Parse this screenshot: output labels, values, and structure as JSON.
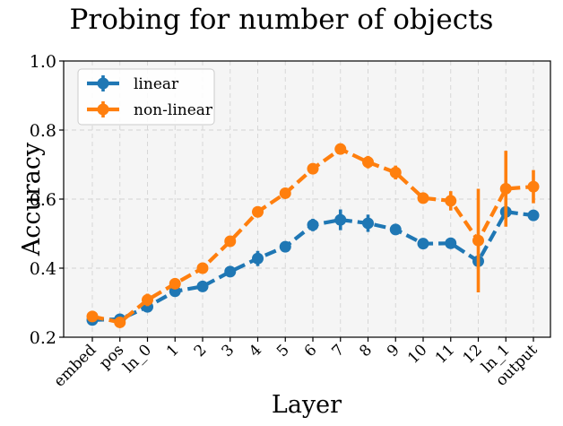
{
  "chart_data": {
    "type": "line",
    "title": "Probing for number of objects",
    "xlabel": "Layer",
    "ylabel": "Accuracy",
    "ylim": [
      0.2,
      1.0
    ],
    "yticks": [
      "0.2",
      "0.4",
      "0.6",
      "0.8",
      "1.0"
    ],
    "grid": true,
    "legend_position": "top-left",
    "categories": [
      "embed",
      "pos",
      "ln_0",
      "1",
      "2",
      "3",
      "4",
      "5",
      "6",
      "7",
      "8",
      "9",
      "10",
      "11",
      "12",
      "ln_1",
      "output"
    ],
    "series": [
      {
        "name": "linear",
        "color": "#1f77b4",
        "values": [
          0.25,
          0.252,
          0.288,
          0.333,
          0.347,
          0.39,
          0.428,
          0.462,
          0.525,
          0.54,
          0.53,
          0.512,
          0.471,
          0.472,
          0.42,
          0.563,
          0.553
        ],
        "errors": [
          0.01,
          0.015,
          0.012,
          0.008,
          0.01,
          0.01,
          0.022,
          0.008,
          0.018,
          0.03,
          0.025,
          0.01,
          0.01,
          0.01,
          0.012,
          0.015,
          0.01
        ]
      },
      {
        "name": "non-linear",
        "color": "#ff7f0e",
        "values": [
          0.26,
          0.243,
          0.308,
          0.355,
          0.4,
          0.478,
          0.563,
          0.617,
          0.688,
          0.745,
          0.707,
          0.677,
          0.603,
          0.595,
          0.48,
          0.63,
          0.636
        ],
        "errors": [
          0.008,
          0.012,
          0.018,
          0.01,
          0.008,
          0.01,
          0.008,
          0.008,
          0.01,
          0.015,
          0.018,
          0.02,
          0.012,
          0.028,
          0.15,
          0.11,
          0.048
        ]
      }
    ]
  }
}
